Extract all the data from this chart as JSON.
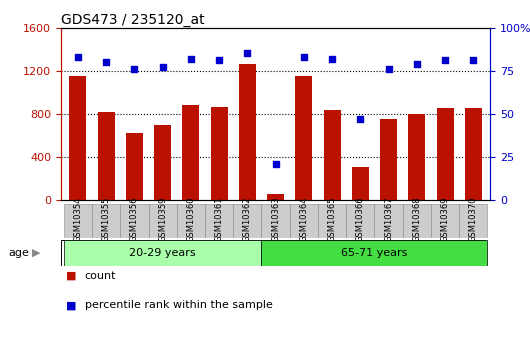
{
  "title": "GDS473 / 235120_at",
  "samples": [
    "GSM10354",
    "GSM10355",
    "GSM10356",
    "GSM10359",
    "GSM10360",
    "GSM10361",
    "GSM10362",
    "GSM10363",
    "GSM10364",
    "GSM10365",
    "GSM10366",
    "GSM10367",
    "GSM10368",
    "GSM10369",
    "GSM10370"
  ],
  "counts": [
    1150,
    820,
    620,
    700,
    880,
    860,
    1260,
    60,
    1150,
    840,
    310,
    750,
    800,
    850,
    850
  ],
  "percentile": [
    83,
    80,
    76,
    77,
    82,
    81,
    85,
    21,
    83,
    82,
    47,
    76,
    79,
    81,
    81
  ],
  "groups": [
    "20-29 years",
    "20-29 years",
    "20-29 years",
    "20-29 years",
    "20-29 years",
    "20-29 years",
    "20-29 years",
    "65-71 years",
    "65-71 years",
    "65-71 years",
    "65-71 years",
    "65-71 years",
    "65-71 years",
    "65-71 years",
    "65-71 years"
  ],
  "group_colors": {
    "20-29 years": "#aaffaa",
    "65-71 years": "#44dd44"
  },
  "bar_color": "#bb1100",
  "dot_color": "#0000cc",
  "ylim_left": [
    0,
    1600
  ],
  "ylim_right": [
    0,
    100
  ],
  "yticks_left": [
    0,
    400,
    800,
    1200,
    1600
  ],
  "yticks_right": [
    0,
    25,
    50,
    75,
    100
  ],
  "yticklabels_right": [
    "0",
    "25",
    "50",
    "75",
    "100%"
  ],
  "grid_values": [
    400,
    800,
    1200
  ],
  "age_label": "age",
  "legend_items": [
    {
      "label": "count",
      "color": "#bb1100"
    },
    {
      "label": "percentile rank within the sample",
      "color": "#0000cc"
    }
  ]
}
